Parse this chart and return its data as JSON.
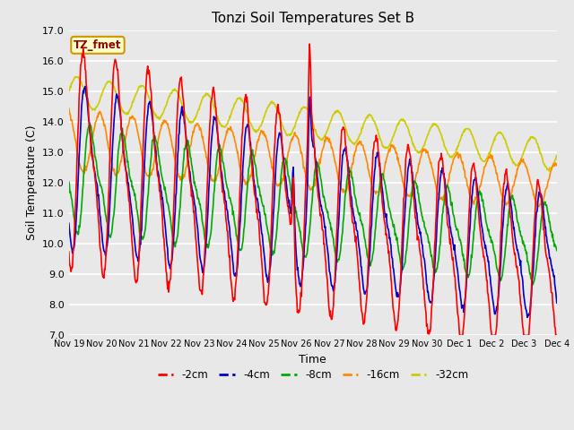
{
  "title": "Tonzi Soil Temperatures Set B",
  "xlabel": "Time",
  "ylabel": "Soil Temperature (C)",
  "ylim": [
    7.0,
    17.0
  ],
  "yticks": [
    7.0,
    8.0,
    9.0,
    10.0,
    11.0,
    12.0,
    13.0,
    14.0,
    15.0,
    16.0,
    17.0
  ],
  "annotation_label": "TZ_fmet",
  "annotation_color": "#990000",
  "annotation_bg": "#ffffcc",
  "annotation_border": "#cc9900",
  "background_color": "#e8e8e8",
  "lines": {
    "-2cm": {
      "color": "#ff0000",
      "lw": 1.2
    },
    "-4cm": {
      "color": "#0000cc",
      "lw": 1.2
    },
    "-8cm": {
      "color": "#00aa00",
      "lw": 1.2
    },
    "-16cm": {
      "color": "#ff8800",
      "lw": 1.2
    },
    "-32cm": {
      "color": "#cccc00",
      "lw": 1.2
    }
  },
  "xtick_labels": [
    "Nov 19",
    "Nov 20",
    "Nov 21",
    "Nov 22",
    "Nov 23",
    "Nov 24",
    "Nov 25",
    "Nov 26",
    "Nov 27",
    "Nov 28",
    "Nov 29",
    "Nov 30",
    "Dec 1",
    "Dec 2",
    "Dec 3",
    "Dec 4"
  ],
  "xtick_positions": [
    0,
    1,
    2,
    3,
    4,
    5,
    6,
    7,
    8,
    9,
    10,
    11,
    12,
    13,
    14,
    15
  ]
}
